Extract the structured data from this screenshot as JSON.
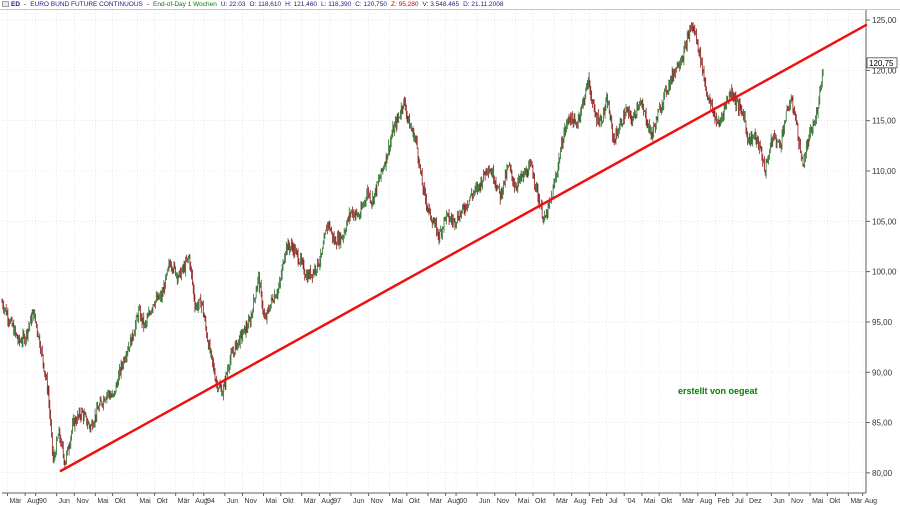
{
  "header": {
    "symbol": "ED",
    "name": "EURO BUND FUTURE CONTINUOUS",
    "period": "End-of-Day 1 Wochen",
    "u": "U: 22:03",
    "o": "O: 118,610",
    "h": "H: 121,460",
    "l": "L: 118,390",
    "c": "C: 120,750",
    "z": "Z: 95,280",
    "v": "V: 3.548.465",
    "d": "D: 21.11.2008"
  },
  "watermark": "erstellt von oegeat",
  "colors": {
    "up_candle": "#2e6e2e",
    "down_candle": "#8b1a1a",
    "trendline": "#ee1111",
    "grid": "#d8d8d8",
    "axis": "#606060",
    "price_label_bg": "#ffffff",
    "watermark": "#008000"
  },
  "chart_data": {
    "type": "candlestick",
    "title": "EURO BUND FUTURE CONTINUOUS",
    "ylim": [
      78,
      126
    ],
    "yticks": [
      "80,00",
      "85,00",
      "90,00",
      "95,00",
      "100,00",
      "105,00",
      "110,00",
      "115,00",
      "120,00",
      "125,00"
    ],
    "ytick_values": [
      80,
      85,
      90,
      95,
      100,
      105,
      110,
      115,
      120,
      125
    ],
    "xlim": [
      1989.2,
      2009.75
    ],
    "xticks": [
      {
        "label": "Mär",
        "x": 1989.33
      },
      {
        "label": "Aug",
        "x": 1989.75
      },
      {
        "label": "'90",
        "x": 1990.0
      },
      {
        "label": "Jun",
        "x": 1990.5
      },
      {
        "label": "Nov",
        "x": 1990.92
      },
      {
        "label": "Mai",
        "x": 1991.42
      },
      {
        "label": "Okt",
        "x": 1991.83
      },
      {
        "label": "Mai",
        "x": 1992.42
      },
      {
        "label": "Okt",
        "x": 1992.83
      },
      {
        "label": "Mär",
        "x": 1993.33
      },
      {
        "label": "Aug",
        "x": 1993.75
      },
      {
        "label": "'94",
        "x": 1994.0
      },
      {
        "label": "Jun",
        "x": 1994.5
      },
      {
        "label": "Nov",
        "x": 1994.92
      },
      {
        "label": "Mai",
        "x": 1995.42
      },
      {
        "label": "Okt",
        "x": 1995.83
      },
      {
        "label": "Mär",
        "x": 1996.33
      },
      {
        "label": "Aug",
        "x": 1996.75
      },
      {
        "label": "'97",
        "x": 1997.0
      },
      {
        "label": "Jun",
        "x": 1997.5
      },
      {
        "label": "Nov",
        "x": 1997.92
      },
      {
        "label": "Mai",
        "x": 1998.42
      },
      {
        "label": "Okt",
        "x": 1998.83
      },
      {
        "label": "Mär",
        "x": 1999.33
      },
      {
        "label": "Aug",
        "x": 1999.75
      },
      {
        "label": "'00",
        "x": 2000.0
      },
      {
        "label": "Jun",
        "x": 2000.5
      },
      {
        "label": "Nov",
        "x": 2000.92
      },
      {
        "label": "Mai",
        "x": 2001.42
      },
      {
        "label": "Okt",
        "x": 2001.83
      },
      {
        "label": "Mär",
        "x": 2002.33
      },
      {
        "label": "Aug",
        "x": 2002.75
      },
      {
        "label": "Feb",
        "x": 2003.17
      },
      {
        "label": "Jul",
        "x": 2003.58
      },
      {
        "label": "'04",
        "x": 2004.0
      },
      {
        "label": "Mai",
        "x": 2004.42
      },
      {
        "label": "Okt",
        "x": 2004.83
      },
      {
        "label": "Mär",
        "x": 2005.33
      },
      {
        "label": "Aug",
        "x": 2005.75
      },
      {
        "label": "Feb",
        "x": 2006.17
      },
      {
        "label": "Jul",
        "x": 2006.58
      },
      {
        "label": "Dez",
        "x": 2006.92
      },
      {
        "label": "Jun",
        "x": 2007.5
      },
      {
        "label": "Nov",
        "x": 2007.92
      },
      {
        "label": "Mai",
        "x": 2008.42
      },
      {
        "label": "Okt",
        "x": 2008.83
      },
      {
        "label": "Mär",
        "x": 2009.33
      },
      {
        "label": "Aug",
        "x": 2009.67
      }
    ],
    "price_path": [
      [
        1989.2,
        97
      ],
      [
        1989.35,
        95.5
      ],
      [
        1989.6,
        93
      ],
      [
        1989.75,
        93.5
      ],
      [
        1989.95,
        96
      ],
      [
        1990.1,
        93
      ],
      [
        1990.3,
        88
      ],
      [
        1990.42,
        81
      ],
      [
        1990.55,
        84
      ],
      [
        1990.7,
        81
      ],
      [
        1990.9,
        85
      ],
      [
        1991.1,
        86
      ],
      [
        1991.3,
        84.5
      ],
      [
        1991.5,
        86.5
      ],
      [
        1991.7,
        88
      ],
      [
        1991.85,
        87.5
      ],
      [
        1992.0,
        90
      ],
      [
        1992.15,
        92
      ],
      [
        1992.3,
        93.5
      ],
      [
        1992.45,
        96
      ],
      [
        1992.6,
        94.5
      ],
      [
        1992.8,
        97
      ],
      [
        1993.0,
        97.5
      ],
      [
        1993.2,
        101
      ],
      [
        1993.4,
        99.5
      ],
      [
        1993.55,
        100.5
      ],
      [
        1993.65,
        101.5
      ],
      [
        1993.8,
        96.5
      ],
      [
        1993.95,
        97
      ],
      [
        1994.1,
        93
      ],
      [
        1994.3,
        89
      ],
      [
        1994.45,
        88
      ],
      [
        1994.6,
        91
      ],
      [
        1994.75,
        92.5
      ],
      [
        1994.95,
        94
      ],
      [
        1995.1,
        95
      ],
      [
        1995.3,
        99.5
      ],
      [
        1995.45,
        95
      ],
      [
        1995.6,
        97
      ],
      [
        1995.8,
        98.5
      ],
      [
        1995.95,
        102.5
      ],
      [
        1996.1,
        102.5
      ],
      [
        1996.3,
        101
      ],
      [
        1996.45,
        99.5
      ],
      [
        1996.6,
        100
      ],
      [
        1996.8,
        101.5
      ],
      [
        1996.95,
        105
      ],
      [
        1997.1,
        103
      ],
      [
        1997.3,
        103.5
      ],
      [
        1997.5,
        106
      ],
      [
        1997.7,
        105.5
      ],
      [
        1997.9,
        108
      ],
      [
        1998.0,
        107
      ],
      [
        1998.2,
        109.5
      ],
      [
        1998.35,
        111.5
      ],
      [
        1998.5,
        114
      ],
      [
        1998.65,
        115.5
      ],
      [
        1998.75,
        117
      ],
      [
        1998.9,
        114.5
      ],
      [
        1999.05,
        113
      ],
      [
        1999.2,
        108.5
      ],
      [
        1999.35,
        106
      ],
      [
        1999.5,
        104.5
      ],
      [
        1999.6,
        103.5
      ],
      [
        1999.75,
        105.5
      ],
      [
        1999.95,
        105
      ],
      [
        2000.15,
        106
      ],
      [
        2000.35,
        107.5
      ],
      [
        2000.55,
        108.5
      ],
      [
        2000.75,
        110.5
      ],
      [
        2000.9,
        109.5
      ],
      [
        2001.05,
        107.5
      ],
      [
        2001.25,
        110.5
      ],
      [
        2001.4,
        108.5
      ],
      [
        2001.6,
        109.5
      ],
      [
        2001.8,
        110.5
      ],
      [
        2001.95,
        107.5
      ],
      [
        2002.1,
        105
      ],
      [
        2002.25,
        107
      ],
      [
        2002.4,
        110
      ],
      [
        2002.55,
        113.5
      ],
      [
        2002.7,
        115.5
      ],
      [
        2002.85,
        114.5
      ],
      [
        2003.0,
        116.5
      ],
      [
        2003.15,
        119
      ],
      [
        2003.3,
        115.5
      ],
      [
        2003.45,
        115
      ],
      [
        2003.6,
        117
      ],
      [
        2003.75,
        113
      ],
      [
        2003.9,
        114.5
      ],
      [
        2004.05,
        116
      ],
      [
        2004.2,
        115
      ],
      [
        2004.35,
        117
      ],
      [
        2004.5,
        115.5
      ],
      [
        2004.65,
        113.5
      ],
      [
        2004.8,
        115.5
      ],
      [
        2004.95,
        117.5
      ],
      [
        2005.1,
        119
      ],
      [
        2005.25,
        120.5
      ],
      [
        2005.4,
        121.5
      ],
      [
        2005.5,
        123
      ],
      [
        2005.6,
        124.5
      ],
      [
        2005.7,
        123.5
      ],
      [
        2005.85,
        120.5
      ],
      [
        2005.95,
        118
      ],
      [
        2006.1,
        116
      ],
      [
        2006.25,
        114.5
      ],
      [
        2006.4,
        116.5
      ],
      [
        2006.55,
        118
      ],
      [
        2006.7,
        116.5
      ],
      [
        2006.85,
        115.5
      ],
      [
        2006.95,
        113
      ],
      [
        2007.1,
        113.5
      ],
      [
        2007.25,
        112
      ],
      [
        2007.35,
        110
      ],
      [
        2007.45,
        112
      ],
      [
        2007.55,
        113.5
      ],
      [
        2007.7,
        112.5
      ],
      [
        2007.85,
        115.5
      ],
      [
        2007.95,
        117
      ],
      [
        2008.05,
        116
      ],
      [
        2008.15,
        113
      ],
      [
        2008.25,
        110.5
      ],
      [
        2008.35,
        112.5
      ],
      [
        2008.45,
        114
      ],
      [
        2008.55,
        115
      ],
      [
        2008.62,
        117
      ],
      [
        2008.7,
        119.5
      ],
      [
        2008.75,
        120.75
      ]
    ],
    "trendline": {
      "x1": 1990.6,
      "y1": 80.2,
      "x2": 2009.75,
      "y2": 124.5
    },
    "last_price_label": "120,75",
    "last_price": 120.75
  }
}
